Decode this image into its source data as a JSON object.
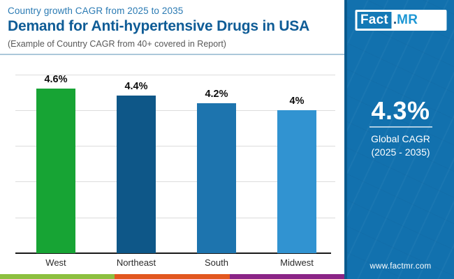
{
  "header": {
    "kicker": "Country growth CAGR from 2025 to 2035",
    "title": "Demand for Anti-hypertensive Drugs in USA",
    "subtitle": "(Example of Country CAGR from 40+ covered in Report)"
  },
  "chart_data": {
    "type": "bar",
    "categories": [
      "West",
      "Northeast",
      "South",
      "Midwest"
    ],
    "values": [
      4.6,
      4.4,
      4.2,
      4.0
    ],
    "value_labels": [
      "4.6%",
      "4.4%",
      "4.2%",
      "4%"
    ],
    "bar_colors": [
      "#17a434",
      "#0e5788",
      "#1d74ae",
      "#3193d1"
    ],
    "title": "Demand for Anti-hypertensive Drugs in USA",
    "xlabel": "",
    "ylabel": "",
    "ylim": [
      0,
      5
    ],
    "grid": true,
    "gridline_color": "#dcdcdc",
    "legend": "none"
  },
  "sidebar": {
    "bg_color": "#1271ae",
    "logo": {
      "fact": "Fact",
      "dot": ".",
      "mr": "MR"
    },
    "cagr_value": "4.3%",
    "cagr_label_line1": "Global CAGR",
    "cagr_label_line2": "(2025 - 2035)",
    "website": "www.factmr.com"
  },
  "footer": {
    "stripe_colors": [
      "#8cbf3f",
      "#e2571f",
      "#8a2486"
    ]
  }
}
